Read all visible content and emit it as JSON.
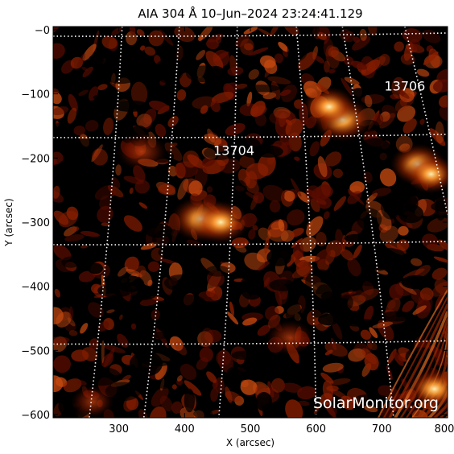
{
  "figure": {
    "title": "AIA 304 Å 10–Jun–2024 23:24:41.129",
    "watermark": "SolarMonitor.org",
    "colors": {
      "background": "#000000",
      "plasma_dark": "#3a0600",
      "plasma_mid": "#a02a00",
      "plasma_bright": "#ff9a30",
      "plasma_hot": "#fff0b0",
      "grid": "#ffffff"
    }
  },
  "chart_data": {
    "type": "heatmap",
    "xlabel": "X (arcsec)",
    "ylabel": "Y (arcsec)",
    "xlim": [
      200,
      800
    ],
    "ylim": [
      -605,
      5
    ],
    "x_ticks": [
      {
        "value": 300,
        "label": "300"
      },
      {
        "value": 400,
        "label": "400"
      },
      {
        "value": 500,
        "label": "500"
      },
      {
        "value": 600,
        "label": "600"
      },
      {
        "value": 700,
        "label": "700"
      },
      {
        "value": 800,
        "label": "800"
      }
    ],
    "y_ticks": [
      {
        "value": 0,
        "label": "−0"
      },
      {
        "value": -100,
        "label": "−100"
      },
      {
        "value": -200,
        "label": "−200"
      },
      {
        "value": -300,
        "label": "−300"
      },
      {
        "value": -400,
        "label": "−400"
      },
      {
        "value": -500,
        "label": "−500"
      },
      {
        "value": -600,
        "label": "−600"
      }
    ],
    "active_regions": [
      {
        "label": "13704",
        "x": 475,
        "y": -195
      },
      {
        "label": "13706",
        "x": 735,
        "y": -95
      }
    ],
    "bright_features": [
      {
        "x": 425,
        "y": -295,
        "intensity": 1.0
      },
      {
        "x": 455,
        "y": -300,
        "intensity": 0.9
      },
      {
        "x": 640,
        "y": -140,
        "intensity": 0.95
      },
      {
        "x": 620,
        "y": -120,
        "intensity": 0.8
      },
      {
        "x": 755,
        "y": -210,
        "intensity": 0.85
      },
      {
        "x": 775,
        "y": -225,
        "intensity": 0.75
      },
      {
        "x": 335,
        "y": -190,
        "intensity": 0.7
      },
      {
        "x": 560,
        "y": -480,
        "intensity": 0.6
      },
      {
        "x": 780,
        "y": -560,
        "intensity": 0.85
      },
      {
        "x": 260,
        "y": -580,
        "intensity": 0.5
      }
    ]
  }
}
